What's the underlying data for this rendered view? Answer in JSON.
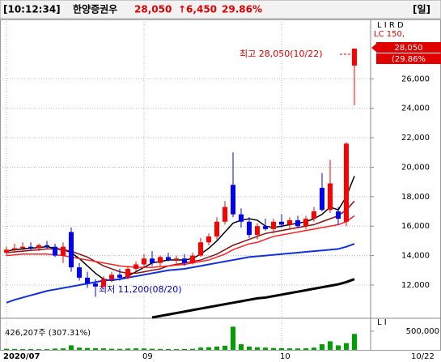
{
  "header": {
    "time": "[10:12:34]",
    "name": "한양증권우",
    "price": "28,050",
    "change": "↑6,450",
    "rate": "29.86%",
    "period": "[일]"
  },
  "chart_data": {
    "type": "candlestick",
    "categories": [
      "2020/07",
      null,
      null,
      null,
      null,
      null,
      null,
      null,
      null,
      null,
      null,
      null,
      null,
      null,
      null,
      null,
      null,
      "09",
      null,
      null,
      null,
      null,
      null,
      null,
      null,
      null,
      null,
      null,
      null,
      null,
      null,
      null,
      null,
      null,
      "10",
      null,
      null,
      null,
      null,
      null,
      null,
      null,
      null,
      null
    ],
    "open": [
      14200,
      14400,
      14500,
      14600,
      14500,
      14700,
      14600,
      14000,
      15600,
      13200,
      12500,
      12100,
      11900,
      12400,
      12700,
      12500,
      13100,
      13400,
      13800,
      13500,
      13900,
      13700,
      13800,
      13500,
      14000,
      14900,
      15300,
      16300,
      18800,
      16800,
      16300,
      15400,
      16000,
      15800,
      16300,
      16100,
      16400,
      16000,
      16500,
      18600,
      17100,
      17000,
      16300,
      26900
    ],
    "high": [
      14600,
      14800,
      14900,
      14900,
      14800,
      15000,
      14800,
      14900,
      15900,
      13500,
      12900,
      12400,
      12600,
      12900,
      13100,
      13300,
      13600,
      14100,
      14300,
      14000,
      14200,
      14000,
      14100,
      14200,
      15200,
      15500,
      16600,
      17700,
      21000,
      17200,
      16600,
      16200,
      16500,
      16500,
      16800,
      16600,
      16700,
      16700,
      17300,
      19600,
      20500,
      17300,
      21700,
      28050
    ],
    "low": [
      14000,
      14200,
      14300,
      14400,
      14300,
      14500,
      13900,
      13500,
      12900,
      12300,
      11800,
      11200,
      11700,
      12200,
      12300,
      12400,
      12900,
      13200,
      13300,
      13300,
      13600,
      13400,
      13300,
      13400,
      13900,
      14700,
      15100,
      16100,
      16600,
      15900,
      15200,
      15100,
      15700,
      15500,
      15900,
      15800,
      15900,
      15800,
      16300,
      17000,
      16900,
      16100,
      16000,
      24200
    ],
    "close": [
      14400,
      14500,
      14600,
      14500,
      14700,
      14600,
      14000,
      14600,
      13200,
      12500,
      12100,
      11900,
      12400,
      12700,
      12500,
      13100,
      13400,
      13800,
      13500,
      13900,
      13700,
      13800,
      13500,
      14000,
      14900,
      15300,
      16300,
      17300,
      16800,
      16300,
      15400,
      16000,
      15800,
      16300,
      16100,
      16400,
      16000,
      16500,
      17000,
      17100,
      18900,
      16500,
      21600,
      28050
    ],
    "up_color": "#ff0000",
    "down_color": "#0000ff",
    "series": [
      {
        "color": "#000000",
        "width": 1.5,
        "values": [
          14300,
          14400,
          14450,
          14500,
          14550,
          14600,
          14500,
          14400,
          14200,
          13800,
          13300,
          12800,
          12400,
          12300,
          12400,
          12600,
          12900,
          13200,
          13500,
          13600,
          13700,
          13700,
          13700,
          13800,
          14100,
          14500,
          15000,
          15600,
          16200,
          16400,
          16500,
          16400,
          16000,
          15900,
          16000,
          16100,
          16200,
          16300,
          16500,
          16800,
          17300,
          17100,
          18000,
          19400
        ]
      },
      {
        "color": "#8b1010",
        "width": 1.5,
        "values": [
          14200,
          14250,
          14300,
          14350,
          14400,
          14450,
          14450,
          14400,
          14300,
          14100,
          13900,
          13600,
          13300,
          13100,
          12900,
          12800,
          12800,
          12900,
          13000,
          13100,
          13300,
          13400,
          13500,
          13600,
          13700,
          13900,
          14100,
          14400,
          14700,
          14900,
          15100,
          15300,
          15500,
          15600,
          15700,
          15800,
          15900,
          16000,
          16100,
          16300,
          16500,
          16700,
          17100,
          17700
        ]
      },
      {
        "color": "#ff2020",
        "width": 1.5,
        "values": [
          14000,
          14050,
          14100,
          14100,
          14100,
          14100,
          14050,
          14000,
          13900,
          13800,
          13700,
          13600,
          13500,
          13400,
          13300,
          13250,
          13200,
          13200,
          13200,
          13250,
          13300,
          13350,
          13400,
          13500,
          13600,
          13700,
          13900,
          14100,
          14400,
          14600,
          14800,
          14900,
          15100,
          15300,
          15400,
          15500,
          15600,
          15700,
          15800,
          15900,
          16000,
          16100,
          16300,
          16700
        ]
      },
      {
        "color": "#1030e0",
        "width": 2,
        "values": [
          10800,
          11000,
          11150,
          11300,
          11450,
          11600,
          11700,
          11800,
          11900,
          12000,
          12100,
          12200,
          12300,
          12350,
          12400,
          12500,
          12600,
          12700,
          12800,
          12900,
          13000,
          13050,
          13100,
          13200,
          13300,
          13400,
          13500,
          13600,
          13700,
          13800,
          13900,
          13950,
          14000,
          14050,
          14100,
          14150,
          14200,
          14250,
          14300,
          14350,
          14400,
          14450,
          14600,
          14800
        ]
      },
      {
        "color": "#000000",
        "width": 3,
        "values": [
          null,
          null,
          null,
          null,
          null,
          null,
          null,
          null,
          null,
          null,
          null,
          null,
          null,
          null,
          null,
          null,
          null,
          null,
          9800,
          9900,
          10000,
          10100,
          10200,
          10300,
          10400,
          10500,
          10600,
          10700,
          10800,
          10900,
          11000,
          11100,
          11150,
          11250,
          11350,
          11450,
          11550,
          11650,
          11750,
          11850,
          11950,
          12050,
          12200,
          12400
        ]
      }
    ],
    "ylim": [
      9800,
      29700
    ],
    "yticks": [
      {
        "value": 12000,
        "label": "12,000"
      },
      {
        "value": 14000,
        "label": "14,000"
      },
      {
        "value": 16000,
        "label": "16,000"
      },
      {
        "value": 18000,
        "label": "18,000"
      },
      {
        "value": 20000,
        "label": "20,000"
      },
      {
        "value": 22000,
        "label": "22,000"
      },
      {
        "value": 24000,
        "label": "24,000"
      },
      {
        "value": 26000,
        "label": "26,000"
      }
    ],
    "grid": true,
    "annotations": {
      "high": "최고 28,050(10/22)",
      "low": "최저 11,200(08/20)"
    },
    "legend_text": "LC 150,",
    "price_tag": "28,050",
    "rate_tag": "(29.86%",
    "axis_flags": "L I R D",
    "end_date": "10/22",
    "volume": {
      "label": "426,207주 (307.31%)",
      "flags": "L I",
      "color": "#00a000",
      "values": [
        30000,
        25000,
        20000,
        22000,
        18000,
        20000,
        35000,
        40000,
        120000,
        60000,
        50000,
        45000,
        40000,
        30000,
        28000,
        35000,
        40000,
        38000,
        30000,
        25000,
        22000,
        20000,
        24000,
        28000,
        60000,
        70000,
        90000,
        110000,
        620000,
        150000,
        90000,
        70000,
        60000,
        50000,
        45000,
        40000,
        38000,
        42000,
        60000,
        150000,
        230000,
        120000,
        180000,
        426207
      ],
      "ylim": [
        0,
        650000
      ],
      "yticks": [
        {
          "value": 500000,
          "label": "500,000"
        }
      ]
    }
  }
}
